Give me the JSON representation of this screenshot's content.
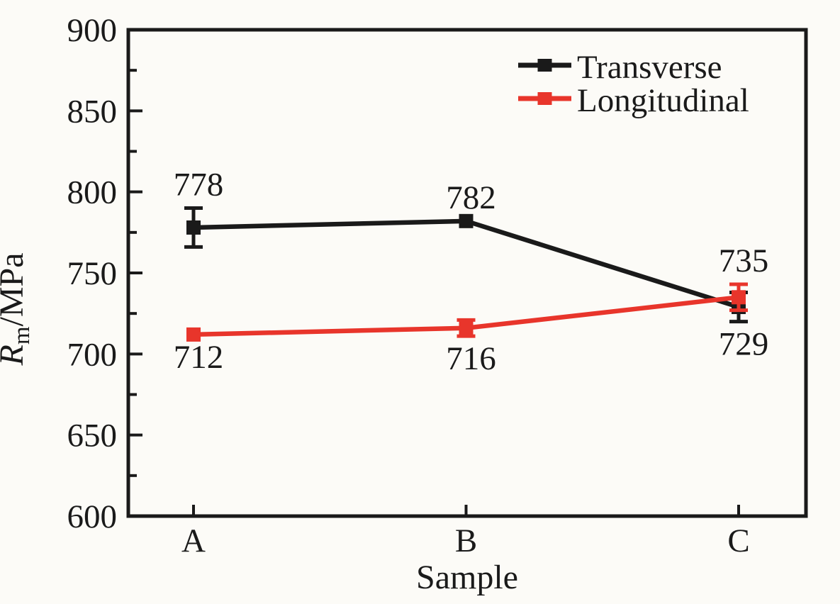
{
  "chart_data": {
    "type": "line",
    "title": "",
    "categories": [
      "A",
      "B",
      "C"
    ],
    "series": [
      {
        "name": "Transverse",
        "values": [
          778,
          782,
          729
        ],
        "errors": [
          12,
          0,
          9
        ],
        "color": "#1a1a1a",
        "marker": "square",
        "label_positions": [
          "above",
          "above",
          "below"
        ],
        "point_labels": [
          "778",
          "782",
          "729"
        ]
      },
      {
        "name": "Longitudinal",
        "values": [
          712,
          716,
          735
        ],
        "errors": [
          0,
          5,
          8
        ],
        "color": "#e8352b",
        "marker": "square",
        "label_positions": [
          "below",
          "below",
          "above"
        ],
        "point_labels": [
          "712",
          "716",
          "735"
        ]
      }
    ],
    "xlabel": "Sample",
    "ylabel": {
      "symbol": "R",
      "subscript": "m",
      "unit": "/MPa"
    },
    "ylim": [
      600,
      900
    ],
    "yticks": [
      600,
      650,
      700,
      750,
      800,
      850,
      900
    ],
    "y_minor_step": 25,
    "grid": false,
    "legend_position": "top-right",
    "point_label_color": "#1a1a1a"
  },
  "colors": {
    "background": "#fcfbf7",
    "axis": "#1a1a1a",
    "text": "#1a1a1a"
  }
}
